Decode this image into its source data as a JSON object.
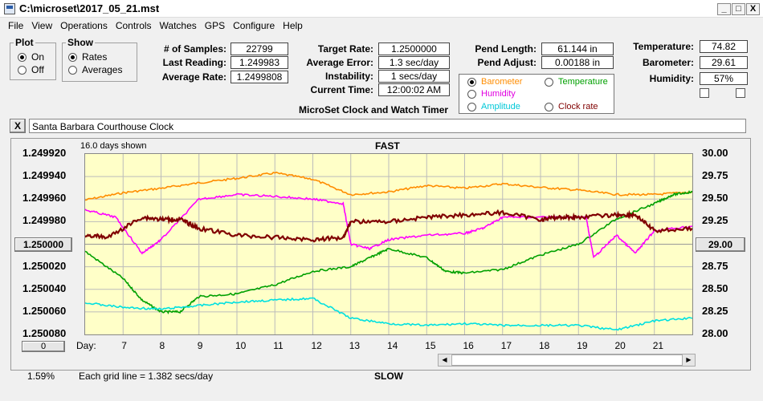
{
  "window": {
    "title": "C:\\microset\\2017_05_21.mst",
    "min": "_",
    "max": "□",
    "close": "X"
  },
  "menu": [
    "File",
    "View",
    "Operations",
    "Controls",
    "Watches",
    "GPS",
    "Configure",
    "Help"
  ],
  "plot_group": {
    "legend": "Plot",
    "on": "On",
    "off": "Off",
    "selected": "On"
  },
  "show_group": {
    "legend": "Show",
    "rates": "Rates",
    "averages": "Averages",
    "selected": "Rates"
  },
  "stats": {
    "samples_label": "# of Samples:",
    "samples": "22799",
    "last_label": "Last Reading:",
    "last": "1.249983",
    "avg_rate_label": "Average Rate:",
    "avg_rate": "1.2499808",
    "target_label": "Target Rate:",
    "target": "1.2500000",
    "avg_err_label": "Average Error:",
    "avg_err": "1.3 sec/day",
    "instab_label": "Instability:",
    "instab": "1 secs/day",
    "time_label": "Current Time:",
    "time": "12:00:02 AM",
    "pend_len_label": "Pend Length:",
    "pend_len": "61.144 in",
    "pend_adj_label": "Pend Adjust:",
    "pend_adj": "0.00188 in",
    "temp_label": "Temperature:",
    "temp": "74.82",
    "baro_label": "Barometer:",
    "baro": "29.61",
    "hum_label": "Humidity:",
    "hum": "57%"
  },
  "app_caption": "MicroSet Clock and Watch Timer",
  "legend": {
    "barometer": "Barometer",
    "temperature": "Temperature",
    "humidity": "Humidity",
    "amplitude": "Amplitude",
    "clock_rate": "Clock rate",
    "selected": "Barometer"
  },
  "clock_name": "Santa Barbara Courthouse Clock",
  "clear_button": "X",
  "chart": {
    "days_shown": "16.0 days shown",
    "top_label": "FAST",
    "bottom_label": "SLOW",
    "left_button": "1.250000",
    "right_button": "29.00",
    "zero_button": "0",
    "percent": "1.59%",
    "grid_note": "Each grid line = 1.382 secs/day",
    "day_label": "Day:"
  },
  "colors": {
    "barometer": "#ff8c00",
    "temperature": "#00a000",
    "humidity": "#ff00ff",
    "amplitude": "#00e0e0",
    "clock_rate": "#800000",
    "plot_bg": "#ffffc8"
  },
  "chart_data": {
    "type": "line",
    "x_label": "Day:",
    "x_ticks": [
      7,
      8,
      9,
      10,
      11,
      12,
      13,
      14,
      15,
      16,
      17,
      18,
      19,
      20,
      21
    ],
    "x_range": [
      6.0,
      22.0
    ],
    "y_left_ticks": [
      "1.249920",
      "1.249940",
      "1.249960",
      "1.249980",
      "1.250000",
      "1.250020",
      "1.250040",
      "1.250060",
      "1.250080"
    ],
    "y_left_range": [
      1.25008,
      1.24992
    ],
    "y_right_ticks": [
      "30.00",
      "29.75",
      "29.50",
      "29.25",
      "29.00",
      "28.75",
      "28.50",
      "28.25",
      "28.00"
    ],
    "y_right_range": [
      28.0,
      30.0
    ],
    "series": [
      {
        "name": "Barometer",
        "axis": "right",
        "x": [
          6.0,
          7.0,
          8.0,
          9.0,
          10.0,
          11.0,
          12.0,
          13.0,
          14.0,
          15.0,
          16.0,
          17.0,
          18.0,
          19.0,
          20.0,
          21.0,
          22.0
        ],
        "y": [
          29.49,
          29.57,
          29.62,
          29.68,
          29.73,
          29.79,
          29.72,
          29.55,
          29.58,
          29.65,
          29.62,
          29.67,
          29.63,
          29.6,
          29.55,
          29.55,
          29.58
        ]
      },
      {
        "name": "Temperature",
        "axis": "right",
        "x": [
          6.0,
          7.0,
          7.5,
          8.0,
          8.5,
          9.0,
          10.0,
          11.0,
          12.0,
          13.0,
          13.5,
          14.0,
          15.0,
          15.5,
          16.0,
          17.0,
          18.0,
          19.0,
          20.0,
          21.0,
          21.5,
          22.0
        ],
        "y": [
          28.92,
          28.62,
          28.38,
          28.25,
          28.25,
          28.42,
          28.45,
          28.55,
          28.7,
          28.75,
          28.85,
          28.95,
          28.85,
          28.7,
          28.68,
          28.72,
          28.88,
          29.0,
          29.28,
          29.45,
          29.55,
          29.58
        ]
      },
      {
        "name": "Humidity",
        "axis": "right",
        "x": [
          6.0,
          6.8,
          7.5,
          8.0,
          9.0,
          10.0,
          11.0,
          12.0,
          12.8,
          13.0,
          13.5,
          14.0,
          15.0,
          16.0,
          16.5,
          17.0,
          18.0,
          19.2,
          19.4,
          20.0,
          20.5,
          21.0,
          22.0
        ],
        "y": [
          29.38,
          29.3,
          28.9,
          29.05,
          29.5,
          29.55,
          29.53,
          29.5,
          29.45,
          29.0,
          28.95,
          29.05,
          29.1,
          29.12,
          29.18,
          29.3,
          29.3,
          29.3,
          28.85,
          29.1,
          28.9,
          29.15,
          29.2
        ]
      },
      {
        "name": "Amplitude",
        "axis": "right",
        "x": [
          6.0,
          7.0,
          8.0,
          9.0,
          10.0,
          11.0,
          12.0,
          13.0,
          14.0,
          15.0,
          16.0,
          17.0,
          18.0,
          19.0,
          20.0,
          21.0,
          22.0
        ],
        "y": [
          28.35,
          28.3,
          28.28,
          28.32,
          28.36,
          28.38,
          28.4,
          28.18,
          28.12,
          28.1,
          28.12,
          28.1,
          28.1,
          28.1,
          28.05,
          28.15,
          28.18
        ]
      },
      {
        "name": "Clock rate",
        "axis": "left",
        "x": [
          6.0,
          6.6,
          7.5,
          8.0,
          8.5,
          9.0,
          10.0,
          11.0,
          12.0,
          12.8,
          13.0,
          14.0,
          15.0,
          16.0,
          17.0,
          18.0,
          18.5,
          19.0,
          20.0,
          20.5,
          21.0,
          22.0
        ],
        "y": [
          1.249992,
          1.249994,
          1.249976,
          1.249978,
          1.249978,
          1.249986,
          1.249992,
          1.249994,
          1.249996,
          1.249994,
          1.24998,
          1.24998,
          1.249976,
          1.249974,
          1.249972,
          1.249978,
          1.249976,
          1.249976,
          1.249974,
          1.249974,
          1.249988,
          1.249986
        ]
      }
    ]
  }
}
